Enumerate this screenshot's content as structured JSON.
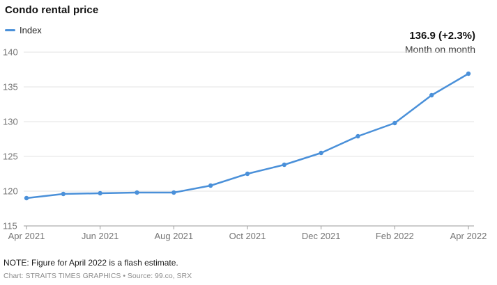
{
  "footer": {
    "note": "NOTE: Figure for April 2022 is a flash estimate.",
    "credit": "Chart: STRAITS TIMES GRAPHICS • Source: 99.co, SRX"
  },
  "chart_data": {
    "type": "line",
    "title": "Condo rental price",
    "x": [
      "Apr 2021",
      "May 2021",
      "Jun 2021",
      "Jul 2021",
      "Aug 2021",
      "Sep 2021",
      "Oct 2021",
      "Nov 2021",
      "Dec 2021",
      "Jan 2022",
      "Feb 2022",
      "Mar 2022",
      "Apr 2022"
    ],
    "series": [
      {
        "name": "Index",
        "values": [
          119.0,
          119.6,
          119.7,
          119.8,
          119.8,
          120.8,
          122.5,
          123.8,
          125.5,
          127.9,
          129.8,
          133.8,
          136.9
        ]
      }
    ],
    "ylim": [
      115,
      140
    ],
    "y_ticks": [
      115,
      120,
      125,
      130,
      135,
      140
    ],
    "x_tick_labels": [
      "Apr 2021",
      "Jun 2021",
      "Aug 2021",
      "Oct 2021",
      "Dec 2021",
      "Feb 2022",
      "Apr 2022"
    ],
    "x_tick_indices": [
      0,
      2,
      4,
      6,
      8,
      10,
      12
    ],
    "grid": true,
    "legend_position": "top-left",
    "annotation": {
      "text": "136.9 (+2.3%)",
      "subtext": "Month on month",
      "position": "top-right"
    },
    "colors": {
      "line": "#4a90d9",
      "grid": "#e3e3e3",
      "axis": "#9a9a9a",
      "tick_label": "#757575"
    }
  }
}
